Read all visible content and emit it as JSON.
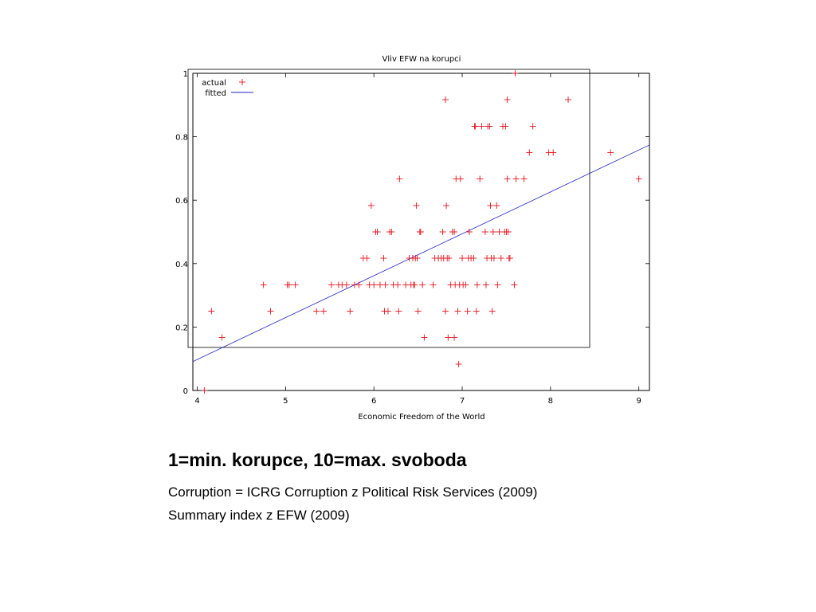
{
  "chart_data": {
    "type": "scatter",
    "title": "Vliv EFW na korupci",
    "xlabel": "Economic Freedom of the World",
    "ylabel": "",
    "xlim": [
      3.95,
      9.12
    ],
    "ylim": [
      0,
      1
    ],
    "x_ticks": [
      "4",
      "5",
      "6",
      "7",
      "8",
      "9"
    ],
    "y_ticks": [
      "0",
      "0.2",
      "0.4",
      "0.6",
      "0.8",
      "1"
    ],
    "grid": false,
    "legend_position": "top-left",
    "series": [
      {
        "name": "actual",
        "marker": "plus",
        "color": "#e8141c",
        "points": [
          [
            4.08,
            0
          ],
          [
            4.16,
            0.25
          ],
          [
            4.28,
            0.167
          ],
          [
            4.75,
            0.333
          ],
          [
            4.83,
            0.25
          ],
          [
            5.02,
            0.333
          ],
          [
            5.04,
            0.333
          ],
          [
            5.11,
            0.333
          ],
          [
            5.35,
            0.25
          ],
          [
            5.43,
            0.25
          ],
          [
            5.52,
            0.333
          ],
          [
            5.6,
            0.333
          ],
          [
            5.64,
            0.333
          ],
          [
            5.69,
            0.333
          ],
          [
            5.73,
            0.25
          ],
          [
            5.78,
            0.333
          ],
          [
            5.83,
            0.333
          ],
          [
            5.88,
            0.417
          ],
          [
            5.92,
            0.417
          ],
          [
            5.95,
            0.333
          ],
          [
            5.97,
            0.583
          ],
          [
            6.0,
            0.333
          ],
          [
            6.02,
            0.5
          ],
          [
            6.04,
            0.5
          ],
          [
            6.07,
            0.333
          ],
          [
            6.11,
            0.417
          ],
          [
            6.12,
            0.25
          ],
          [
            6.13,
            0.333
          ],
          [
            6.16,
            0.25
          ],
          [
            6.18,
            0.5
          ],
          [
            6.2,
            0.5
          ],
          [
            6.22,
            0.333
          ],
          [
            6.27,
            0.333
          ],
          [
            6.28,
            0.25
          ],
          [
            6.29,
            0.667
          ],
          [
            6.36,
            0.333
          ],
          [
            6.4,
            0.417
          ],
          [
            6.42,
            0.333
          ],
          [
            6.44,
            0.417
          ],
          [
            6.45,
            0.333
          ],
          [
            6.46,
            0.333
          ],
          [
            6.47,
            0.417
          ],
          [
            6.48,
            0.583
          ],
          [
            6.49,
            0.417
          ],
          [
            6.5,
            0.25
          ],
          [
            6.52,
            0.5
          ],
          [
            6.53,
            0.5
          ],
          [
            6.55,
            0.333
          ],
          [
            6.57,
            0.167
          ],
          [
            6.67,
            0.333
          ],
          [
            6.69,
            0.417
          ],
          [
            6.73,
            0.417
          ],
          [
            6.76,
            0.417
          ],
          [
            6.78,
            0.5
          ],
          [
            6.79,
            0.417
          ],
          [
            6.81,
            0.917
          ],
          [
            6.81,
            0.25
          ],
          [
            6.82,
            0.583
          ],
          [
            6.83,
            0.417
          ],
          [
            6.84,
            0.167
          ],
          [
            6.85,
            0.417
          ],
          [
            6.87,
            0.333
          ],
          [
            6.89,
            0.5
          ],
          [
            6.91,
            0.167
          ],
          [
            6.91,
            0.5
          ],
          [
            6.92,
            0.333
          ],
          [
            6.93,
            0.667
          ],
          [
            6.95,
            0.25
          ],
          [
            6.96,
            0.083
          ],
          [
            6.97,
            0.333
          ],
          [
            6.98,
            0.667
          ],
          [
            7.0,
            0.417
          ],
          [
            7.01,
            0.333
          ],
          [
            7.04,
            0.333
          ],
          [
            7.06,
            0.25
          ],
          [
            7.07,
            0.417
          ],
          [
            7.08,
            0.5
          ],
          [
            7.1,
            0.417
          ],
          [
            7.13,
            0.417
          ],
          [
            7.14,
            0.833
          ],
          [
            7.15,
            0.833
          ],
          [
            7.16,
            0.25
          ],
          [
            7.17,
            0.333
          ],
          [
            7.2,
            0.667
          ],
          [
            7.22,
            0.833
          ],
          [
            7.26,
            0.5
          ],
          [
            7.27,
            0.333
          ],
          [
            7.28,
            0.417
          ],
          [
            7.29,
            0.833
          ],
          [
            7.31,
            0.833
          ],
          [
            7.32,
            0.583
          ],
          [
            7.33,
            0.417
          ],
          [
            7.34,
            0.25
          ],
          [
            7.35,
            0.5
          ],
          [
            7.36,
            0.417
          ],
          [
            7.39,
            0.583
          ],
          [
            7.4,
            0.333
          ],
          [
            7.42,
            0.5
          ],
          [
            7.44,
            0.417
          ],
          [
            7.46,
            0.833
          ],
          [
            7.48,
            0.5
          ],
          [
            7.49,
            0.833
          ],
          [
            7.5,
            0.5
          ],
          [
            7.51,
            0.917
          ],
          [
            7.51,
            0.667
          ],
          [
            7.52,
            0.5
          ],
          [
            7.53,
            0.417
          ],
          [
            7.54,
            0.417
          ],
          [
            7.59,
            0.333
          ],
          [
            7.6,
            1.0
          ],
          [
            7.61,
            0.667
          ],
          [
            7.7,
            0.667
          ],
          [
            7.76,
            0.75
          ],
          [
            7.8,
            0.833
          ],
          [
            7.98,
            0.75
          ],
          [
            8.03,
            0.75
          ],
          [
            8.2,
            0.917
          ],
          [
            8.68,
            0.75
          ],
          [
            9.0,
            0.667
          ]
        ]
      },
      {
        "name": "fitted",
        "marker": "line",
        "color": "#2020c8",
        "line": [
          [
            3.95,
            0.091
          ],
          [
            9.12,
            0.774
          ]
        ]
      }
    ]
  },
  "caption": {
    "heading": "1=min. korupce, 10=max. svoboda",
    "line1": "Corruption = ICRG Corruption z Political Risk Services (2009)",
    "line2": "Summary index z EFW (2009)"
  }
}
